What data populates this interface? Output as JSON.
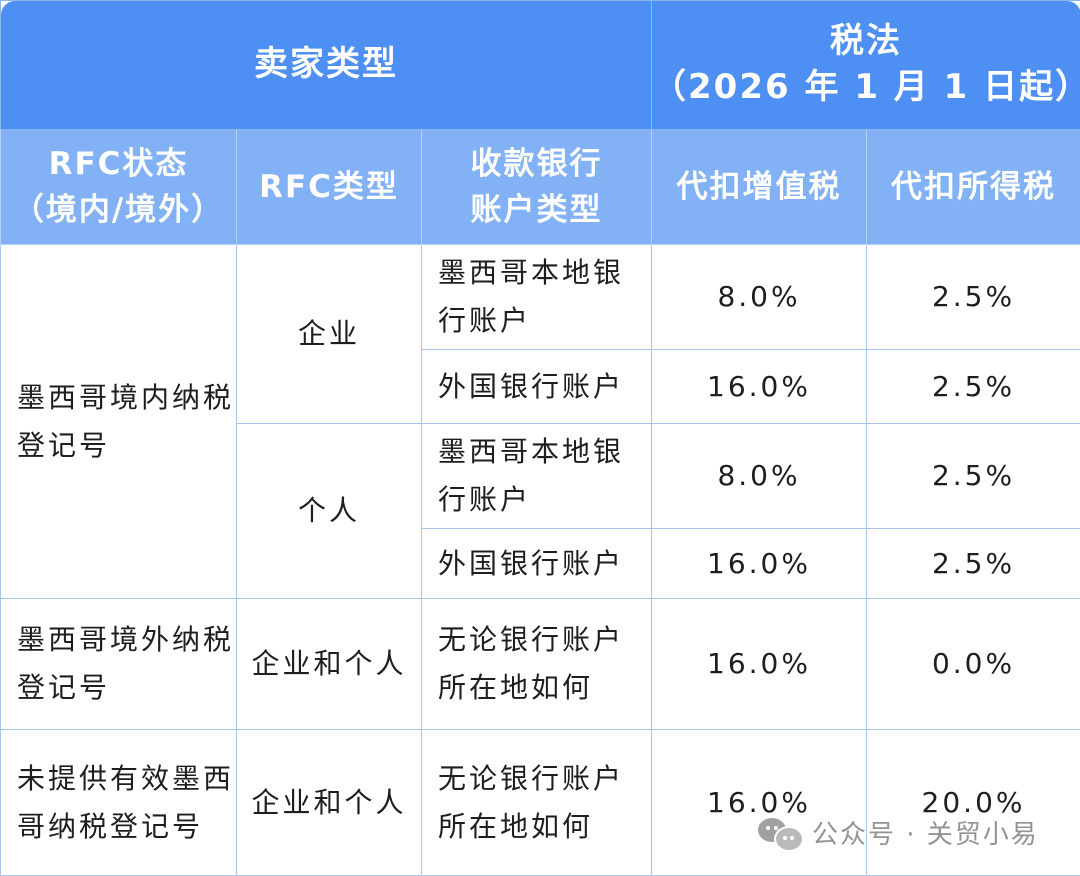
{
  "header": {
    "seller_type": "卖家类型",
    "tax_law_line1": "税法",
    "tax_law_line2": "（2026 年 1 月 1 日起）"
  },
  "subheader": {
    "rfc_status_line1": "RFC状态",
    "rfc_status_line2": "（境内/境外）",
    "rfc_type": "RFC类型",
    "bank_type_line1": "收款银行",
    "bank_type_line2": "账户类型",
    "vat": "代扣增值税",
    "income_tax": "代扣所得税"
  },
  "groups": [
    {
      "status": "墨西哥境内纳税登记号",
      "types": [
        {
          "type": "企业",
          "rows": [
            {
              "bank": "墨西哥本地银行账户",
              "vat": "8.0%",
              "income": "2.5%"
            },
            {
              "bank": "外国银行账户",
              "vat": "16.0%",
              "income": "2.5%"
            }
          ]
        },
        {
          "type": "个人",
          "rows": [
            {
              "bank": "墨西哥本地银行账户",
              "vat": "8.0%",
              "income": "2.5%"
            },
            {
              "bank": "外国银行账户",
              "vat": "16.0%",
              "income": "2.5%"
            }
          ]
        }
      ]
    },
    {
      "status": "墨西哥境外纳税登记号",
      "types": [
        {
          "type": "企业和个人",
          "rows": [
            {
              "bank": "无论银行账户所在地如何",
              "vat": "16.0%",
              "income": "0.0%"
            }
          ]
        }
      ]
    },
    {
      "status": "未提供有效墨西哥纳税登记号",
      "types": [
        {
          "type": "企业和个人",
          "rows": [
            {
              "bank": "无论银行账户所在地如何",
              "vat": "16.0%",
              "income": "20.0%"
            }
          ]
        }
      ]
    }
  ],
  "watermark": {
    "icon": "wechat-icon",
    "text": "公众号 · 关贸小易"
  },
  "colors": {
    "header_dark": "#4d8ff2",
    "header_light": "#82b1f5",
    "border": "#a9c7ec"
  }
}
